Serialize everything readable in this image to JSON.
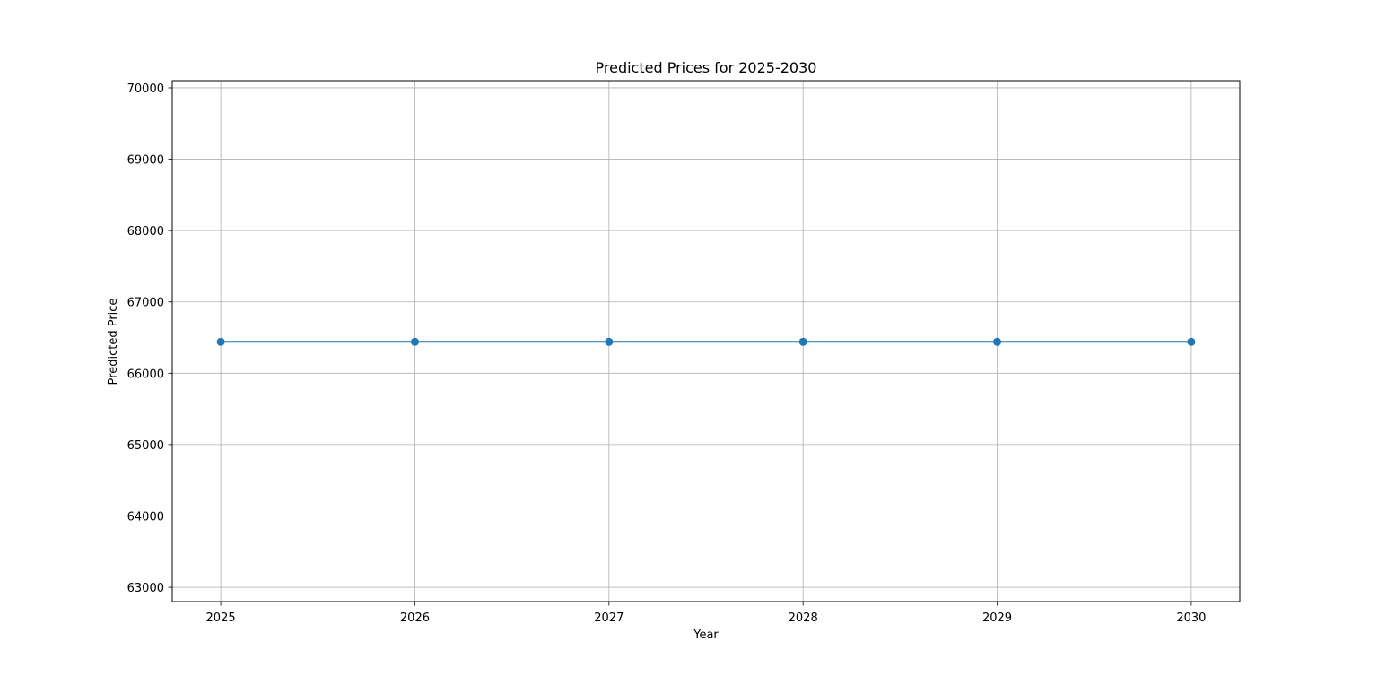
{
  "chart_data": {
    "type": "line",
    "title": "Predicted Prices for 2025-2030",
    "xlabel": "Year",
    "ylabel": "Predicted Price",
    "x": [
      2025,
      2026,
      2027,
      2028,
      2029,
      2030
    ],
    "x_tick_labels": [
      "2025",
      "2026",
      "2027",
      "2028",
      "2029",
      "2030"
    ],
    "y_ticks": [
      63000,
      64000,
      65000,
      66000,
      67000,
      68000,
      69000,
      70000
    ],
    "y_tick_labels": [
      "63000",
      "64000",
      "65000",
      "66000",
      "67000",
      "68000",
      "69000",
      "70000"
    ],
    "xlim": [
      2024.75,
      2030.25
    ],
    "ylim": [
      62800,
      70100
    ],
    "grid": true,
    "series": [
      {
        "values": [
          66440,
          66440,
          66440,
          66440,
          66440,
          66440
        ],
        "color": "#1f77b4",
        "marker": "circle"
      }
    ]
  }
}
